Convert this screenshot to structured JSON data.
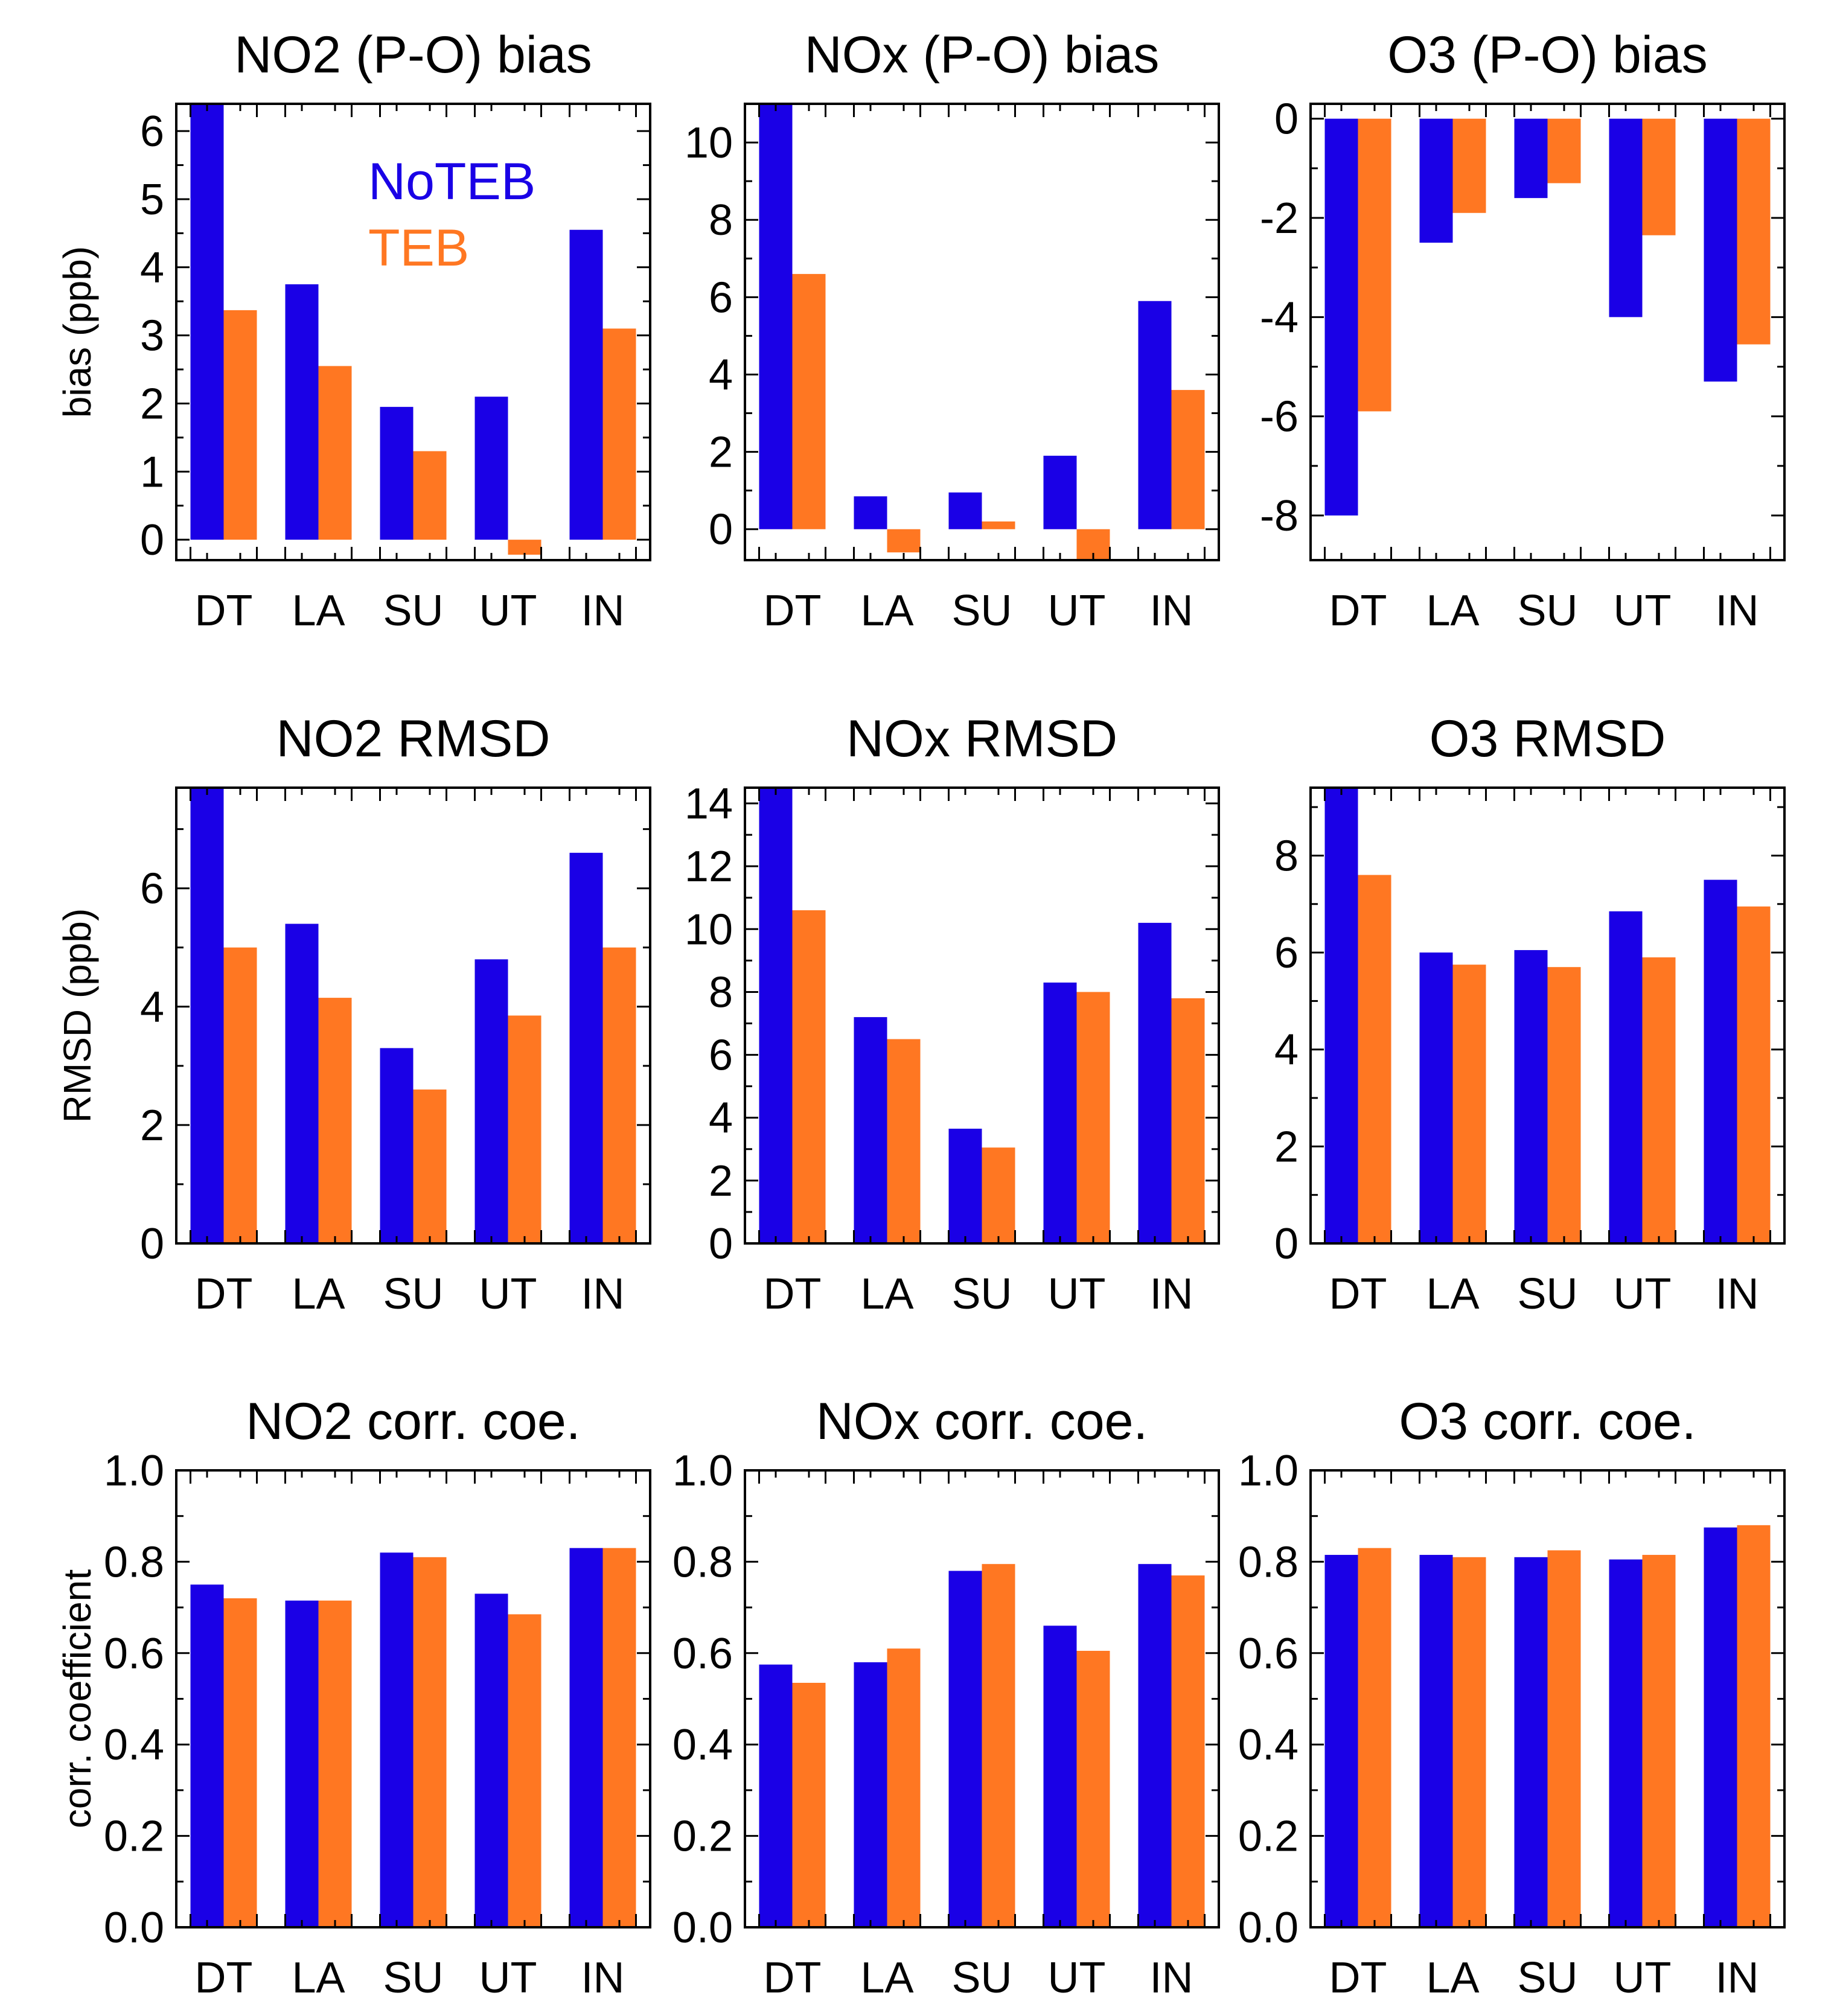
{
  "legend": {
    "entries": [
      {
        "label": "NoTEB",
        "color": "#1a00e6"
      },
      {
        "label": "TEB",
        "color": "#ff7722"
      }
    ]
  },
  "chart_data": [
    {
      "type": "bar",
      "title": "NO2 (P-O) bias",
      "ylabel": "bias (ppb)",
      "categories": [
        "DT",
        "LA",
        "SU",
        "UT",
        "IN"
      ],
      "ylim": [
        -0.3,
        6.4
      ],
      "yticks": [
        {
          "v": 0,
          "label": "0"
        },
        {
          "v": 1,
          "label": "1"
        },
        {
          "v": 2,
          "label": "2"
        },
        {
          "v": 3,
          "label": "3"
        },
        {
          "v": 4,
          "label": "4"
        },
        {
          "v": 5,
          "label": "5"
        },
        {
          "v": 6,
          "label": "6"
        }
      ],
      "series": [
        {
          "name": "NoTEB",
          "color": "#1a00e6",
          "values": [
            6.4,
            3.75,
            1.95,
            2.1,
            4.55
          ]
        },
        {
          "name": "TEB",
          "color": "#ff7722",
          "values": [
            3.37,
            2.55,
            1.3,
            -0.22,
            3.1
          ]
        }
      ],
      "legend_position": "top-right"
    },
    {
      "type": "bar",
      "title": "NOx (P-O) bias",
      "ylabel": "",
      "categories": [
        "DT",
        "LA",
        "SU",
        "UT",
        "IN"
      ],
      "ylim": [
        -0.8,
        11
      ],
      "yticks": [
        {
          "v": 0,
          "label": "0"
        },
        {
          "v": 2,
          "label": "2"
        },
        {
          "v": 4,
          "label": "4"
        },
        {
          "v": 6,
          "label": "6"
        },
        {
          "v": 8,
          "label": "8"
        },
        {
          "v": 10,
          "label": "10"
        }
      ],
      "series": [
        {
          "name": "NoTEB",
          "color": "#1a00e6",
          "values": [
            11,
            0.85,
            0.95,
            1.9,
            5.9
          ]
        },
        {
          "name": "TEB",
          "color": "#ff7722",
          "values": [
            6.6,
            -0.6,
            0.2,
            -0.8,
            3.6
          ]
        }
      ]
    },
    {
      "type": "bar",
      "title": "O3 (P-O) bias",
      "ylabel": "",
      "categories": [
        "DT",
        "LA",
        "SU",
        "UT",
        "IN"
      ],
      "ylim": [
        -8.9,
        0.3
      ],
      "yticks": [
        {
          "v": 0,
          "label": "0"
        },
        {
          "v": -2,
          "label": "-2"
        },
        {
          "v": -4,
          "label": "-4"
        },
        {
          "v": -6,
          "label": "-6"
        },
        {
          "v": -8,
          "label": "-8"
        }
      ],
      "series": [
        {
          "name": "NoTEB",
          "color": "#1a00e6",
          "values": [
            -8.0,
            -2.5,
            -1.6,
            -4.0,
            -5.3
          ]
        },
        {
          "name": "TEB",
          "color": "#ff7722",
          "values": [
            -5.9,
            -1.9,
            -1.3,
            -2.35,
            -4.55
          ]
        }
      ]
    },
    {
      "type": "bar",
      "title": "NO2 RMSD",
      "ylabel": "RMSD (ppb)",
      "categories": [
        "DT",
        "LA",
        "SU",
        "UT",
        "IN"
      ],
      "ylim": [
        0,
        7.7
      ],
      "yticks": [
        {
          "v": 0,
          "label": "0"
        },
        {
          "v": 2,
          "label": "2"
        },
        {
          "v": 4,
          "label": "4"
        },
        {
          "v": 6,
          "label": "6"
        }
      ],
      "series": [
        {
          "name": "NoTEB",
          "color": "#1a00e6",
          "values": [
            7.7,
            5.4,
            3.3,
            4.8,
            6.6
          ]
        },
        {
          "name": "TEB",
          "color": "#ff7722",
          "values": [
            5.0,
            4.15,
            2.6,
            3.85,
            5.0
          ]
        }
      ]
    },
    {
      "type": "bar",
      "title": "NOx RMSD",
      "ylabel": "",
      "categories": [
        "DT",
        "LA",
        "SU",
        "UT",
        "IN"
      ],
      "ylim": [
        0,
        14.5
      ],
      "yticks": [
        {
          "v": 0,
          "label": "0"
        },
        {
          "v": 2,
          "label": "2"
        },
        {
          "v": 4,
          "label": "4"
        },
        {
          "v": 6,
          "label": "6"
        },
        {
          "v": 8,
          "label": "8"
        },
        {
          "v": 10,
          "label": "10"
        },
        {
          "v": 12,
          "label": "12"
        },
        {
          "v": 14,
          "label": "14"
        }
      ],
      "series": [
        {
          "name": "NoTEB",
          "color": "#1a00e6",
          "values": [
            14.5,
            7.2,
            3.65,
            8.3,
            10.2
          ]
        },
        {
          "name": "TEB",
          "color": "#ff7722",
          "values": [
            10.6,
            6.5,
            3.05,
            8.0,
            7.8
          ]
        }
      ]
    },
    {
      "type": "bar",
      "title": "O3 RMSD",
      "ylabel": "",
      "categories": [
        "DT",
        "LA",
        "SU",
        "UT",
        "IN"
      ],
      "ylim": [
        0,
        9.4
      ],
      "yticks": [
        {
          "v": 0,
          "label": "0"
        },
        {
          "v": 2,
          "label": "2"
        },
        {
          "v": 4,
          "label": "4"
        },
        {
          "v": 6,
          "label": "6"
        },
        {
          "v": 8,
          "label": "8"
        }
      ],
      "series": [
        {
          "name": "NoTEB",
          "color": "#1a00e6",
          "values": [
            9.4,
            6.0,
            6.05,
            6.85,
            7.5
          ]
        },
        {
          "name": "TEB",
          "color": "#ff7722",
          "values": [
            7.6,
            5.75,
            5.7,
            5.9,
            6.95
          ]
        }
      ]
    },
    {
      "type": "bar",
      "title": "NO2 corr. coe.",
      "ylabel": "corr. coefficient",
      "categories": [
        "DT",
        "LA",
        "SU",
        "UT",
        "IN"
      ],
      "ylim": [
        0,
        1.0
      ],
      "yticks": [
        {
          "v": 0,
          "label": "0.0"
        },
        {
          "v": 0.2,
          "label": "0.2"
        },
        {
          "v": 0.4,
          "label": "0.4"
        },
        {
          "v": 0.6,
          "label": "0.6"
        },
        {
          "v": 0.8,
          "label": "0.8"
        },
        {
          "v": 1.0,
          "label": "1.0"
        }
      ],
      "series": [
        {
          "name": "NoTEB",
          "color": "#1a00e6",
          "values": [
            0.75,
            0.715,
            0.82,
            0.73,
            0.83
          ]
        },
        {
          "name": "TEB",
          "color": "#ff7722",
          "values": [
            0.72,
            0.715,
            0.81,
            0.685,
            0.83
          ]
        }
      ]
    },
    {
      "type": "bar",
      "title": "NOx corr. coe.",
      "ylabel": "",
      "categories": [
        "DT",
        "LA",
        "SU",
        "UT",
        "IN"
      ],
      "ylim": [
        0,
        1.0
      ],
      "yticks": [
        {
          "v": 0,
          "label": "0.0"
        },
        {
          "v": 0.2,
          "label": "0.2"
        },
        {
          "v": 0.4,
          "label": "0.4"
        },
        {
          "v": 0.6,
          "label": "0.6"
        },
        {
          "v": 0.8,
          "label": "0.8"
        },
        {
          "v": 1.0,
          "label": "1.0"
        }
      ],
      "series": [
        {
          "name": "NoTEB",
          "color": "#1a00e6",
          "values": [
            0.575,
            0.58,
            0.78,
            0.66,
            0.795
          ]
        },
        {
          "name": "TEB",
          "color": "#ff7722",
          "values": [
            0.535,
            0.61,
            0.795,
            0.605,
            0.77
          ]
        }
      ]
    },
    {
      "type": "bar",
      "title": "O3 corr. coe.",
      "ylabel": "",
      "categories": [
        "DT",
        "LA",
        "SU",
        "UT",
        "IN"
      ],
      "ylim": [
        0,
        1.0
      ],
      "yticks": [
        {
          "v": 0,
          "label": "0.0"
        },
        {
          "v": 0.2,
          "label": "0.2"
        },
        {
          "v": 0.4,
          "label": "0.4"
        },
        {
          "v": 0.6,
          "label": "0.6"
        },
        {
          "v": 0.8,
          "label": "0.8"
        },
        {
          "v": 1.0,
          "label": "1.0"
        }
      ],
      "series": [
        {
          "name": "NoTEB",
          "color": "#1a00e6",
          "values": [
            0.815,
            0.815,
            0.81,
            0.805,
            0.875
          ]
        },
        {
          "name": "TEB",
          "color": "#ff7722",
          "values": [
            0.83,
            0.81,
            0.825,
            0.815,
            0.88
          ]
        }
      ]
    }
  ]
}
